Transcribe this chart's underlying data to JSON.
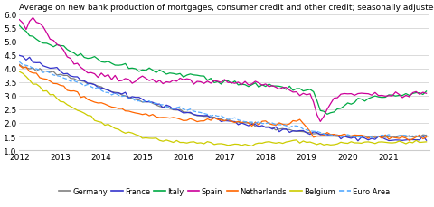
{
  "title": "Average on new bank production of mortgages, consumer credit and other credit; seasonally adjusted",
  "ylim": [
    1.0,
    6.0
  ],
  "yticks": [
    1.0,
    1.5,
    2.0,
    2.5,
    3.0,
    3.5,
    4.0,
    4.5,
    5.0,
    5.5,
    6.0
  ],
  "xtick_years": [
    2012,
    2013,
    2014,
    2015,
    2016,
    2017,
    2018,
    2019,
    2020,
    2021
  ],
  "legend": [
    "Germany",
    "France",
    "Italy",
    "Spain",
    "Netherlands",
    "Belgium",
    "Euro Area"
  ],
  "colors": {
    "Germany": "#808080",
    "France": "#3333CC",
    "Italy": "#00AA44",
    "Spain": "#CC0099",
    "Netherlands": "#FF6600",
    "Belgium": "#CCCC00",
    "Euro Area": "#55AAFF"
  },
  "linestyles": {
    "Germany": "-",
    "France": "-",
    "Italy": "-",
    "Spain": "-",
    "Netherlands": "-",
    "Belgium": "-",
    "Euro Area": "--"
  }
}
